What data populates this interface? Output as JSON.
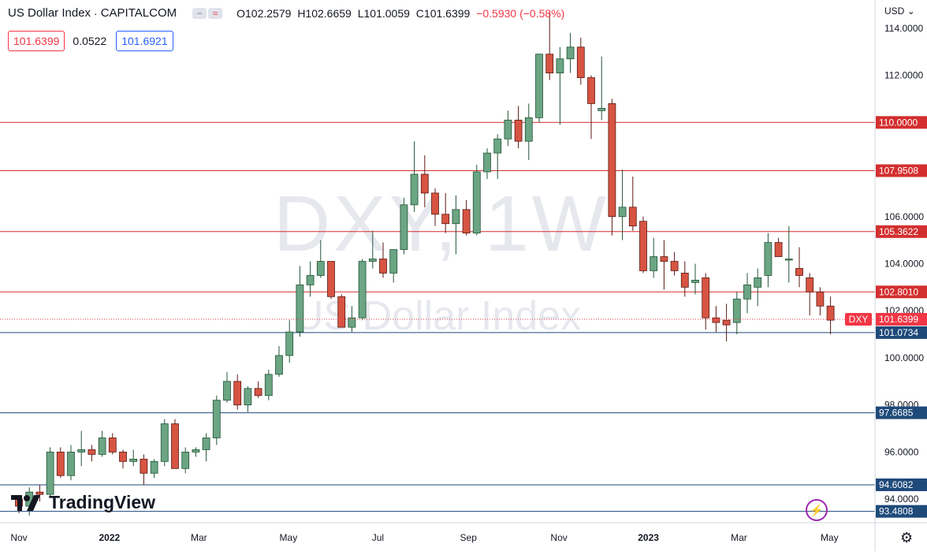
{
  "header": {
    "title": "US Dollar Index",
    "separator": "·",
    "source": "CAPITALCOM",
    "open": "O102.2579",
    "high": "H102.6659",
    "low": "L101.0059",
    "close": "C101.6399",
    "change": "−0.5930 (−0.58%)",
    "icon_names": [
      "minus-icon",
      "wave-icon"
    ]
  },
  "quote": {
    "sell": "101.6399",
    "spread": "0.0522",
    "buy": "101.6921"
  },
  "currency": "USD",
  "currency_icon": "chevron-down-icon",
  "brand": "TradingView",
  "watermark": {
    "symbol": "DXY, 1W",
    "name": "US Dollar Index"
  },
  "colors": {
    "up": "#6ba583",
    "down": "#d75442",
    "up_border": "#225437",
    "down_border": "#5b1a13",
    "support": "#1e4a7a",
    "resistance": "#d32f2f",
    "last_price_tag": "#f23645"
  },
  "chart_data": {
    "type": "candlestick",
    "symbol": "DXY",
    "timeframe": "1W",
    "ylim": [
      93.0,
      115.2
    ],
    "yticks": [
      "94.0000",
      "96.0000",
      "98.0000",
      "100.0000",
      "102.0000",
      "104.0000",
      "106.0000",
      "112.0000",
      "114.0000"
    ],
    "x_labels": [
      {
        "label": "Nov",
        "week": 0
      },
      {
        "label": "2022",
        "week": 8.7
      },
      {
        "label": "Mar",
        "week": 17.3
      },
      {
        "label": "May",
        "week": 25.9
      },
      {
        "label": "Jul",
        "week": 34.5
      },
      {
        "label": "Sep",
        "week": 43.2
      },
      {
        "label": "Nov",
        "week": 51.9
      },
      {
        "label": "2023",
        "week": 60.5
      },
      {
        "label": "Mar",
        "week": 69.2
      },
      {
        "label": "May",
        "week": 77.9
      }
    ],
    "levels": [
      {
        "value": 110.0,
        "label": "110.0000",
        "kind": "resistance"
      },
      {
        "value": 107.9508,
        "label": "107.9508",
        "kind": "resistance"
      },
      {
        "value": 105.3622,
        "label": "105.3622",
        "kind": "resistance"
      },
      {
        "value": 102.801,
        "label": "102.8010",
        "kind": "resistance"
      },
      {
        "value": 101.0734,
        "label": "101.0734",
        "kind": "support"
      },
      {
        "value": 97.6685,
        "label": "97.6685",
        "kind": "support"
      },
      {
        "value": 94.6082,
        "label": "94.6082",
        "kind": "support"
      },
      {
        "value": 93.4808,
        "label": "93.4808",
        "kind": "support"
      }
    ],
    "last_price": {
      "value": 101.6399,
      "label": "101.6399",
      "tag": "DXY"
    },
    "candles": [
      [
        94.0,
        94.1,
        93.4,
        93.7
      ],
      [
        93.7,
        94.5,
        93.3,
        94.3
      ],
      [
        94.3,
        94.6,
        93.9,
        94.2
      ],
      [
        94.2,
        96.2,
        94.1,
        96.0
      ],
      [
        96.0,
        96.2,
        94.9,
        95.0
      ],
      [
        95.0,
        96.3,
        94.8,
        96.0
      ],
      [
        96.0,
        96.9,
        95.4,
        96.1
      ],
      [
        96.1,
        96.3,
        95.6,
        95.9
      ],
      [
        95.9,
        96.9,
        95.8,
        96.6
      ],
      [
        96.6,
        96.8,
        95.9,
        96.0
      ],
      [
        96.0,
        96.1,
        95.3,
        95.6
      ],
      [
        95.6,
        96.1,
        95.4,
        95.7
      ],
      [
        95.7,
        95.9,
        94.6,
        95.1
      ],
      [
        95.1,
        95.7,
        94.9,
        95.6
      ],
      [
        95.6,
        97.4,
        95.4,
        97.2
      ],
      [
        97.2,
        97.4,
        95.3,
        95.3
      ],
      [
        95.3,
        96.2,
        95.1,
        96.0
      ],
      [
        96.0,
        96.2,
        95.8,
        96.1
      ],
      [
        96.1,
        96.8,
        95.6,
        96.6
      ],
      [
        96.6,
        98.4,
        96.3,
        98.2
      ],
      [
        98.2,
        99.4,
        98.1,
        99.0
      ],
      [
        99.0,
        99.3,
        97.8,
        98.0
      ],
      [
        98.0,
        98.8,
        97.7,
        98.7
      ],
      [
        98.7,
        99.0,
        98.3,
        98.4
      ],
      [
        98.4,
        99.5,
        98.2,
        99.3
      ],
      [
        99.3,
        100.5,
        99.2,
        100.1
      ],
      [
        100.1,
        101.6,
        99.8,
        101.1
      ],
      [
        101.1,
        103.9,
        100.9,
        103.1
      ],
      [
        103.1,
        104.1,
        102.6,
        103.5
      ],
      [
        103.5,
        105.0,
        103.4,
        104.1
      ],
      [
        104.1,
        104.1,
        102.5,
        102.6
      ],
      [
        102.6,
        102.7,
        101.3,
        101.3
      ],
      [
        101.3,
        102.2,
        101.1,
        101.7
      ],
      [
        101.7,
        104.2,
        101.6,
        104.1
      ],
      [
        104.1,
        105.4,
        103.8,
        104.2
      ],
      [
        104.2,
        104.9,
        103.4,
        103.6
      ],
      [
        103.6,
        104.6,
        103.2,
        104.6
      ],
      [
        104.6,
        106.8,
        104.4,
        106.5
      ],
      [
        106.5,
        109.2,
        106.2,
        107.8
      ],
      [
        107.8,
        108.6,
        106.4,
        107.0
      ],
      [
        107.0,
        107.2,
        105.6,
        106.1
      ],
      [
        106.1,
        107.0,
        105.3,
        105.7
      ],
      [
        105.7,
        106.9,
        104.4,
        106.3
      ],
      [
        106.3,
        106.7,
        105.2,
        105.3
      ],
      [
        105.3,
        108.2,
        105.2,
        107.9
      ],
      [
        107.9,
        108.9,
        107.6,
        108.7
      ],
      [
        108.7,
        109.5,
        107.6,
        109.3
      ],
      [
        109.3,
        110.5,
        109.0,
        110.1
      ],
      [
        110.1,
        110.7,
        108.9,
        109.2
      ],
      [
        109.2,
        110.8,
        108.4,
        110.2
      ],
      [
        110.2,
        112.8,
        110.0,
        112.9
      ],
      [
        112.9,
        114.7,
        111.8,
        112.1
      ],
      [
        112.1,
        113.2,
        109.9,
        112.7
      ],
      [
        112.7,
        113.8,
        112.1,
        113.2
      ],
      [
        113.2,
        113.6,
        111.6,
        111.9
      ],
      [
        111.9,
        112.0,
        109.3,
        110.8
      ],
      [
        110.5,
        112.8,
        110.1,
        110.6
      ],
      [
        110.8,
        111.0,
        105.2,
        106.0
      ],
      [
        106.0,
        108.0,
        105.0,
        106.4
      ],
      [
        106.4,
        107.7,
        105.4,
        105.6
      ],
      [
        105.8,
        106.0,
        103.6,
        103.7
      ],
      [
        103.7,
        105.1,
        103.4,
        104.3
      ],
      [
        104.3,
        105.0,
        102.9,
        104.1
      ],
      [
        104.1,
        104.5,
        103.5,
        103.7
      ],
      [
        103.6,
        104.1,
        102.6,
        103.0
      ],
      [
        103.2,
        104.0,
        102.7,
        103.3
      ],
      [
        103.4,
        103.6,
        101.2,
        101.7
      ],
      [
        101.7,
        102.2,
        101.1,
        101.5
      ],
      [
        101.6,
        102.3,
        100.7,
        101.4
      ],
      [
        101.5,
        102.8,
        101.0,
        102.5
      ],
      [
        102.5,
        103.6,
        101.9,
        103.1
      ],
      [
        103.0,
        103.8,
        102.2,
        103.4
      ],
      [
        103.5,
        105.3,
        103.0,
        104.9
      ],
      [
        104.9,
        105.1,
        104.3,
        104.3
      ],
      [
        104.2,
        105.6,
        103.2,
        104.2
      ],
      [
        103.8,
        104.7,
        103.0,
        103.5
      ],
      [
        103.4,
        103.6,
        101.8,
        102.8
      ],
      [
        102.8,
        103.0,
        101.8,
        102.2
      ],
      [
        102.2,
        102.6,
        101.0,
        101.6
      ]
    ]
  }
}
